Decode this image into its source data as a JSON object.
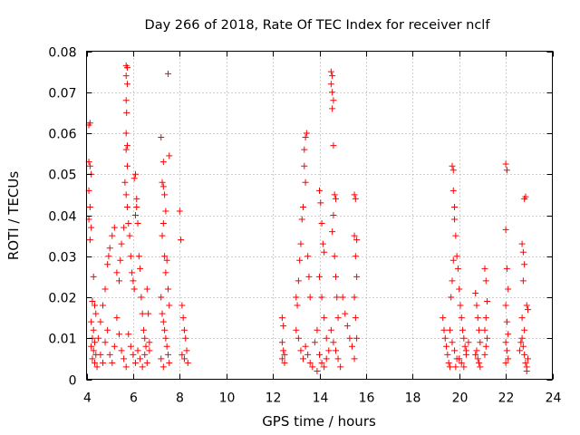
{
  "chart_data": {
    "type": "scatter",
    "title": "Day 266 of 2018, Rate Of TEC Index for receiver nclf",
    "xlabel": "GPS time / hours",
    "ylabel": "ROTI / TECUs",
    "xlim": [
      4,
      24
    ],
    "ylim": [
      0,
      0.08
    ],
    "xticks": [
      "4",
      "6",
      "8",
      "10",
      "12",
      "14",
      "16",
      "18",
      "20",
      "22",
      "24"
    ],
    "yticks": [
      "0",
      "0.01",
      "0.02",
      "0.03",
      "0.04",
      "0.05",
      "0.06",
      "0.07",
      "0.08"
    ],
    "grid": true,
    "marker": "+",
    "color": "#ff0000",
    "series": [
      {
        "name": "ROTI",
        "points": [
          [
            4.1,
            0.062
          ],
          [
            4.15,
            0.0625
          ],
          [
            4.1,
            0.053
          ],
          [
            4.15,
            0.052
          ],
          [
            4.2,
            0.05
          ],
          [
            4.1,
            0.046
          ],
          [
            4.15,
            0.042
          ],
          [
            4.1,
            0.039
          ],
          [
            4.2,
            0.037
          ],
          [
            4.15,
            0.034
          ],
          [
            4.3,
            0.025
          ],
          [
            4.25,
            0.019
          ],
          [
            4.35,
            0.018
          ],
          [
            4.4,
            0.016
          ],
          [
            4.2,
            0.014
          ],
          [
            4.3,
            0.012
          ],
          [
            4.25,
            0.01
          ],
          [
            4.35,
            0.009
          ],
          [
            4.2,
            0.008
          ],
          [
            4.3,
            0.007
          ],
          [
            4.4,
            0.006
          ],
          [
            4.25,
            0.005
          ],
          [
            4.35,
            0.004
          ],
          [
            4.45,
            0.003
          ],
          [
            4.5,
            0.01
          ],
          [
            4.6,
            0.014
          ],
          [
            4.7,
            0.018
          ],
          [
            4.8,
            0.022
          ],
          [
            4.9,
            0.028
          ],
          [
            4.95,
            0.03
          ],
          [
            5.0,
            0.032
          ],
          [
            5.1,
            0.035
          ],
          [
            5.2,
            0.037
          ],
          [
            5.3,
            0.026
          ],
          [
            5.4,
            0.024
          ],
          [
            5.5,
            0.033
          ],
          [
            5.45,
            0.029
          ],
          [
            5.6,
            0.037
          ],
          [
            4.6,
            0.006
          ],
          [
            4.7,
            0.004
          ],
          [
            4.8,
            0.009
          ],
          [
            4.9,
            0.012
          ],
          [
            5.0,
            0.006
          ],
          [
            5.1,
            0.004
          ],
          [
            5.2,
            0.008
          ],
          [
            5.3,
            0.015
          ],
          [
            5.4,
            0.011
          ],
          [
            5.5,
            0.007
          ],
          [
            5.6,
            0.005
          ],
          [
            5.7,
            0.003
          ],
          [
            5.7,
            0.0765
          ],
          [
            5.75,
            0.076
          ],
          [
            5.7,
            0.074
          ],
          [
            5.75,
            0.072
          ],
          [
            5.7,
            0.068
          ],
          [
            5.72,
            0.065
          ],
          [
            5.7,
            0.06
          ],
          [
            5.75,
            0.057
          ],
          [
            5.7,
            0.056
          ],
          [
            5.75,
            0.052
          ],
          [
            5.65,
            0.048
          ],
          [
            5.7,
            0.045
          ],
          [
            5.75,
            0.042
          ],
          [
            5.8,
            0.038
          ],
          [
            5.85,
            0.035
          ],
          [
            5.9,
            0.03
          ],
          [
            5.95,
            0.026
          ],
          [
            6.0,
            0.024
          ],
          [
            6.05,
            0.022
          ],
          [
            6.1,
            0.04
          ],
          [
            6.15,
            0.044
          ],
          [
            6.05,
            0.049
          ],
          [
            6.1,
            0.05
          ],
          [
            6.15,
            0.042
          ],
          [
            6.2,
            0.038
          ],
          [
            6.25,
            0.03
          ],
          [
            6.3,
            0.027
          ],
          [
            6.35,
            0.02
          ],
          [
            6.4,
            0.016
          ],
          [
            6.45,
            0.012
          ],
          [
            6.5,
            0.01
          ],
          [
            6.55,
            0.008
          ],
          [
            6.6,
            0.022
          ],
          [
            6.65,
            0.016
          ],
          [
            6.7,
            0.009
          ],
          [
            5.8,
            0.011
          ],
          [
            5.9,
            0.008
          ],
          [
            6.0,
            0.006
          ],
          [
            6.1,
            0.004
          ],
          [
            6.2,
            0.007
          ],
          [
            6.3,
            0.005
          ],
          [
            6.4,
            0.003
          ],
          [
            6.5,
            0.006
          ],
          [
            6.6,
            0.004
          ],
          [
            6.7,
            0.007
          ],
          [
            7.2,
            0.059
          ],
          [
            7.3,
            0.053
          ],
          [
            7.25,
            0.048
          ],
          [
            7.3,
            0.047
          ],
          [
            7.35,
            0.045
          ],
          [
            7.4,
            0.041
          ],
          [
            7.3,
            0.038
          ],
          [
            7.25,
            0.035
          ],
          [
            7.35,
            0.03
          ],
          [
            7.5,
            0.0745
          ],
          [
            7.55,
            0.0545
          ],
          [
            7.45,
            0.029
          ],
          [
            7.4,
            0.026
          ],
          [
            7.5,
            0.022
          ],
          [
            7.55,
            0.018
          ],
          [
            7.2,
            0.02
          ],
          [
            7.25,
            0.016
          ],
          [
            7.3,
            0.014
          ],
          [
            7.35,
            0.012
          ],
          [
            7.4,
            0.01
          ],
          [
            7.45,
            0.008
          ],
          [
            7.5,
            0.006
          ],
          [
            7.55,
            0.004
          ],
          [
            7.2,
            0.005
          ],
          [
            7.3,
            0.003
          ],
          [
            8.0,
            0.041
          ],
          [
            8.05,
            0.034
          ],
          [
            8.1,
            0.018
          ],
          [
            8.15,
            0.015
          ],
          [
            8.2,
            0.012
          ],
          [
            8.25,
            0.01
          ],
          [
            8.3,
            0.007
          ],
          [
            8.2,
            0.005
          ],
          [
            8.35,
            0.004
          ],
          [
            8.1,
            0.006
          ],
          [
            12.4,
            0.015
          ],
          [
            12.45,
            0.013
          ],
          [
            12.4,
            0.009
          ],
          [
            12.45,
            0.007
          ],
          [
            12.5,
            0.006
          ],
          [
            12.4,
            0.005
          ],
          [
            12.5,
            0.004
          ],
          [
            13.0,
            0.02
          ],
          [
            13.05,
            0.018
          ],
          [
            13.1,
            0.024
          ],
          [
            13.15,
            0.029
          ],
          [
            13.2,
            0.033
          ],
          [
            13.25,
            0.039
          ],
          [
            13.3,
            0.042
          ],
          [
            13.35,
            0.056
          ],
          [
            13.4,
            0.059
          ],
          [
            13.45,
            0.06
          ],
          [
            13.35,
            0.052
          ],
          [
            13.4,
            0.048
          ],
          [
            13.5,
            0.03
          ],
          [
            13.55,
            0.025
          ],
          [
            13.6,
            0.02
          ],
          [
            13.0,
            0.012
          ],
          [
            13.1,
            0.01
          ],
          [
            13.2,
            0.007
          ],
          [
            13.3,
            0.005
          ],
          [
            13.4,
            0.008
          ],
          [
            13.5,
            0.006
          ],
          [
            13.6,
            0.004
          ],
          [
            13.7,
            0.003
          ],
          [
            13.8,
            0.009
          ],
          [
            13.9,
            0.012
          ],
          [
            14.0,
            0.046
          ],
          [
            14.05,
            0.043
          ],
          [
            14.1,
            0.038
          ],
          [
            14.15,
            0.033
          ],
          [
            14.2,
            0.031
          ],
          [
            14.0,
            0.025
          ],
          [
            14.1,
            0.02
          ],
          [
            14.2,
            0.015
          ],
          [
            14.3,
            0.01
          ],
          [
            14.0,
            0.006
          ],
          [
            14.1,
            0.004
          ],
          [
            14.2,
            0.003
          ],
          [
            14.3,
            0.005
          ],
          [
            14.4,
            0.007
          ],
          [
            13.9,
            0.002
          ],
          [
            14.5,
            0.075
          ],
          [
            14.55,
            0.074
          ],
          [
            14.5,
            0.072
          ],
          [
            14.55,
            0.07
          ],
          [
            14.6,
            0.068
          ],
          [
            14.55,
            0.066
          ],
          [
            14.6,
            0.057
          ],
          [
            14.65,
            0.045
          ],
          [
            14.7,
            0.044
          ],
          [
            14.6,
            0.04
          ],
          [
            14.55,
            0.036
          ],
          [
            14.65,
            0.03
          ],
          [
            14.7,
            0.025
          ],
          [
            14.75,
            0.02
          ],
          [
            14.8,
            0.015
          ],
          [
            14.5,
            0.012
          ],
          [
            14.6,
            0.009
          ],
          [
            14.7,
            0.007
          ],
          [
            14.8,
            0.005
          ],
          [
            14.9,
            0.003
          ],
          [
            15.0,
            0.02
          ],
          [
            15.1,
            0.016
          ],
          [
            15.2,
            0.013
          ],
          [
            15.3,
            0.01
          ],
          [
            15.4,
            0.008
          ],
          [
            15.5,
            0.045
          ],
          [
            15.55,
            0.044
          ],
          [
            15.5,
            0.035
          ],
          [
            15.6,
            0.034
          ],
          [
            15.55,
            0.03
          ],
          [
            15.6,
            0.025
          ],
          [
            15.5,
            0.02
          ],
          [
            15.55,
            0.015
          ],
          [
            15.6,
            0.01
          ],
          [
            15.5,
            0.005
          ],
          [
            19.3,
            0.015
          ],
          [
            19.35,
            0.012
          ],
          [
            19.4,
            0.01
          ],
          [
            19.45,
            0.008
          ],
          [
            19.5,
            0.006
          ],
          [
            19.55,
            0.004
          ],
          [
            19.6,
            0.003
          ],
          [
            19.65,
            0.02
          ],
          [
            19.7,
            0.024
          ],
          [
            19.75,
            0.029
          ],
          [
            19.6,
            0.012
          ],
          [
            19.7,
            0.009
          ],
          [
            19.8,
            0.007
          ],
          [
            19.9,
            0.005
          ],
          [
            19.85,
            0.003
          ],
          [
            19.7,
            0.052
          ],
          [
            19.75,
            0.051
          ],
          [
            19.75,
            0.046
          ],
          [
            19.8,
            0.042
          ],
          [
            19.8,
            0.039
          ],
          [
            19.85,
            0.035
          ],
          [
            19.9,
            0.03
          ],
          [
            19.95,
            0.027
          ],
          [
            20.0,
            0.022
          ],
          [
            20.05,
            0.018
          ],
          [
            20.1,
            0.015
          ],
          [
            20.15,
            0.012
          ],
          [
            20.2,
            0.01
          ],
          [
            20.25,
            0.008
          ],
          [
            20.3,
            0.006
          ],
          [
            20.0,
            0.005
          ],
          [
            20.1,
            0.004
          ],
          [
            20.2,
            0.003
          ],
          [
            20.3,
            0.007
          ],
          [
            20.4,
            0.009
          ],
          [
            20.7,
            0.021
          ],
          [
            20.75,
            0.018
          ],
          [
            20.8,
            0.015
          ],
          [
            20.85,
            0.012
          ],
          [
            20.9,
            0.009
          ],
          [
            20.75,
            0.007
          ],
          [
            20.8,
            0.005
          ],
          [
            20.85,
            0.004
          ],
          [
            20.9,
            0.003
          ],
          [
            20.7,
            0.006
          ],
          [
            21.1,
            0.027
          ],
          [
            21.15,
            0.024
          ],
          [
            21.2,
            0.019
          ],
          [
            21.15,
            0.015
          ],
          [
            21.1,
            0.012
          ],
          [
            21.2,
            0.01
          ],
          [
            21.15,
            0.008
          ],
          [
            21.1,
            0.006
          ],
          [
            22.0,
            0.0525
          ],
          [
            22.05,
            0.051
          ],
          [
            22.0,
            0.0365
          ],
          [
            22.05,
            0.027
          ],
          [
            22.1,
            0.022
          ],
          [
            22.0,
            0.018
          ],
          [
            22.05,
            0.014
          ],
          [
            22.1,
            0.011
          ],
          [
            22.0,
            0.009
          ],
          [
            22.05,
            0.007
          ],
          [
            22.1,
            0.005
          ],
          [
            22.0,
            0.004
          ],
          [
            22.7,
            0.033
          ],
          [
            22.75,
            0.031
          ],
          [
            22.8,
            0.028
          ],
          [
            22.75,
            0.024
          ],
          [
            22.85,
            0.0445
          ],
          [
            22.8,
            0.044
          ],
          [
            22.9,
            0.018
          ],
          [
            22.95,
            0.017
          ],
          [
            22.7,
            0.015
          ],
          [
            22.8,
            0.012
          ],
          [
            22.7,
            0.01
          ],
          [
            22.75,
            0.008
          ],
          [
            22.8,
            0.006
          ],
          [
            22.85,
            0.004
          ],
          [
            22.9,
            0.003
          ],
          [
            22.95,
            0.005
          ],
          [
            22.6,
            0.007
          ],
          [
            22.65,
            0.009
          ],
          [
            22.9,
            0.002
          ]
        ]
      }
    ]
  }
}
